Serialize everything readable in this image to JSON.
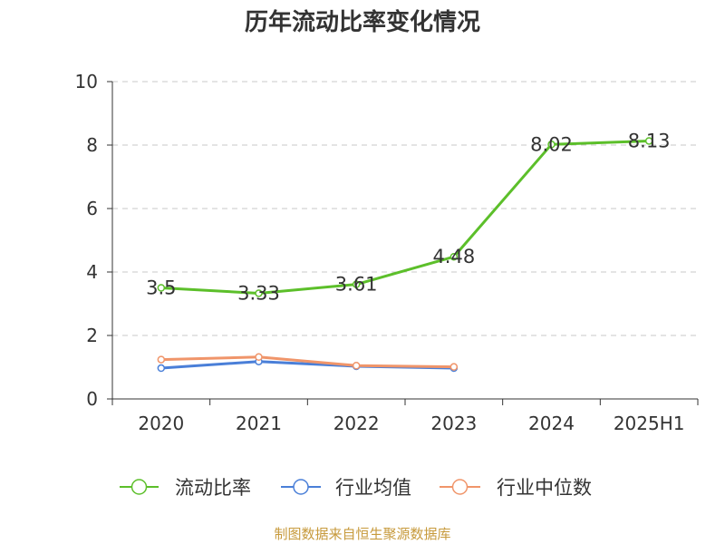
{
  "title": "历年流动比率变化情况",
  "source": "制图数据来自恒生聚源数据库",
  "colors": {
    "axis": "#333333",
    "grid": "#c8c8c8",
    "text": "#333333"
  },
  "chart_data": {
    "type": "line",
    "title": "历年流动比率变化情况",
    "categories": [
      "2020",
      "2021",
      "2022",
      "2023",
      "2024",
      "2025H1"
    ],
    "ylim": [
      0,
      10
    ],
    "yticks": [
      0,
      2,
      4,
      6,
      8,
      10
    ],
    "grid": true,
    "legend_position": "bottom",
    "series": [
      {
        "name": "流动比率",
        "color": "#5cbf2a",
        "values": [
          3.5,
          3.33,
          3.61,
          4.48,
          8.02,
          8.13
        ],
        "labels": [
          "3.5",
          "3.33",
          "3.61",
          "4.48",
          "8.02",
          "8.13"
        ],
        "show_labels": true
      },
      {
        "name": "行业均值",
        "color": "#4a7fd8",
        "values": [
          0.97,
          1.18,
          1.03,
          0.97,
          null,
          null
        ],
        "show_labels": false
      },
      {
        "name": "行业中位数",
        "color": "#f0956a",
        "values": [
          1.24,
          1.32,
          1.05,
          1.01,
          null,
          null
        ],
        "show_labels": false
      }
    ]
  }
}
